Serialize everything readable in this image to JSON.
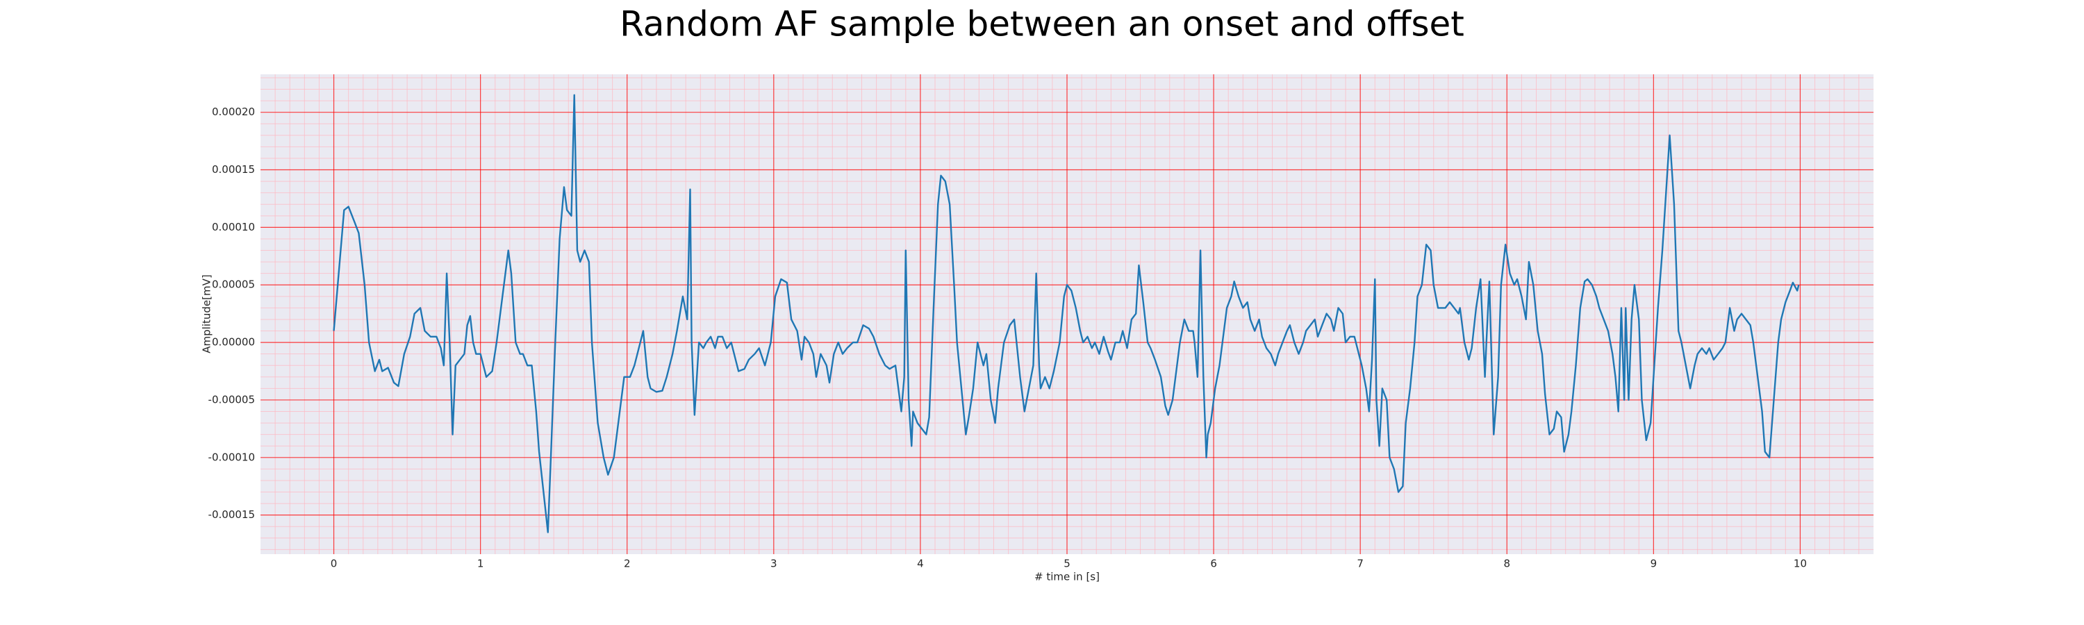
{
  "chart_data": {
    "type": "line",
    "title": "Random AF sample between an onset and offset",
    "xlabel": "# time in [s]",
    "ylabel": "Amplitude[mV]",
    "color": "#1f77b4",
    "grid": true,
    "xlim": [
      -0.5,
      10.5
    ],
    "ylim": [
      -0.000184,
      0.000233
    ],
    "xticks": [
      0,
      1,
      2,
      3,
      4,
      5,
      6,
      7,
      8,
      9,
      10
    ],
    "yticks": [
      {
        "value": -0.00015,
        "label": "-0.00015"
      },
      {
        "value": -0.0001,
        "label": "-0.00010"
      },
      {
        "value": -5e-05,
        "label": "-0.00005"
      },
      {
        "value": 0,
        "label": "0.00000"
      },
      {
        "value": 5e-05,
        "label": "0.00005"
      },
      {
        "value": 0.0001,
        "label": "0.00010"
      },
      {
        "value": 0.00015,
        "label": "0.00015"
      },
      {
        "value": 0.0002,
        "label": "0.00020"
      }
    ],
    "x": [
      0,
      0.04,
      0.07,
      0.1,
      0.14,
      0.17,
      0.21,
      0.24,
      0.28,
      0.31,
      0.33,
      0.37,
      0.41,
      0.44,
      0.48,
      0.52,
      0.55,
      0.59,
      0.62,
      0.66,
      0.7,
      0.73,
      0.75,
      0.77,
      0.79,
      0.81,
      0.83,
      0.86,
      0.89,
      0.91,
      0.93,
      0.95,
      0.97,
      1.0,
      1.04,
      1.08,
      1.11,
      1.15,
      1.19,
      1.21,
      1.24,
      1.27,
      1.29,
      1.32,
      1.35,
      1.38,
      1.4,
      1.43,
      1.46,
      1.48,
      1.51,
      1.54,
      1.57,
      1.59,
      1.62,
      1.64,
      1.66,
      1.68,
      1.71,
      1.74,
      1.76,
      1.8,
      1.84,
      1.87,
      1.91,
      1.95,
      1.98,
      2.02,
      2.05,
      2.09,
      2.11,
      2.14,
      2.16,
      2.2,
      2.24,
      2.27,
      2.31,
      2.34,
      2.38,
      2.41,
      2.43,
      2.44,
      2.46,
      2.49,
      2.52,
      2.54,
      2.57,
      2.6,
      2.62,
      2.65,
      2.68,
      2.71,
      2.73,
      2.76,
      2.8,
      2.83,
      2.87,
      2.9,
      2.94,
      2.98,
      3.01,
      3.05,
      3.09,
      3.12,
      3.16,
      3.19,
      3.21,
      3.24,
      3.27,
      3.29,
      3.32,
      3.36,
      3.38,
      3.41,
      3.44,
      3.47,
      3.5,
      3.54,
      3.57,
      3.61,
      3.65,
      3.68,
      3.72,
      3.76,
      3.79,
      3.83,
      3.86,
      3.87,
      3.89,
      3.9,
      3.92,
      3.94,
      3.95,
      3.98,
      4.01,
      4.04,
      4.06,
      4.09,
      4.12,
      4.14,
      4.17,
      4.2,
      4.23,
      4.25,
      4.28,
      4.31,
      4.33,
      4.36,
      4.39,
      4.43,
      4.45,
      4.48,
      4.51,
      4.53,
      4.57,
      4.61,
      4.64,
      4.68,
      4.71,
      4.74,
      4.77,
      4.79,
      4.81,
      4.82,
      4.85,
      4.88,
      4.91,
      4.95,
      4.98,
      5.0,
      5.03,
      5.06,
      5.09,
      5.11,
      5.14,
      5.17,
      5.19,
      5.22,
      5.25,
      5.28,
      5.3,
      5.33,
      5.36,
      5.38,
      5.41,
      5.44,
      5.47,
      5.49,
      5.52,
      5.55,
      5.57,
      5.6,
      5.64,
      5.67,
      5.69,
      5.72,
      5.75,
      5.77,
      5.8,
      5.83,
      5.86,
      5.87,
      5.89,
      5.91,
      5.93,
      5.95,
      5.96,
      5.98,
      6.01,
      6.04,
      6.06,
      6.09,
      6.12,
      6.14,
      6.17,
      6.2,
      6.23,
      6.25,
      6.28,
      6.31,
      6.33,
      6.36,
      6.39,
      6.42,
      6.44,
      6.47,
      6.5,
      6.52,
      6.55,
      6.58,
      6.61,
      6.63,
      6.66,
      6.69,
      6.71,
      6.74,
      6.77,
      6.8,
      6.82,
      6.85,
      6.88,
      6.9,
      6.93,
      6.96,
      6.99,
      7.01,
      7.04,
      7.06,
      7.08,
      7.1,
      7.11,
      7.13,
      7.15,
      7.18,
      7.2,
      7.23,
      7.26,
      7.29,
      7.31,
      7.34,
      7.37,
      7.39,
      7.42,
      7.45,
      7.48,
      7.5,
      7.53,
      7.56,
      7.58,
      7.61,
      7.64,
      7.67,
      7.68,
      7.71,
      7.74,
      7.76,
      7.79,
      7.82,
      7.85,
      7.86,
      7.88,
      7.91,
      7.94,
      7.96,
      7.99,
      8.02,
      8.05,
      8.07,
      8.1,
      8.13,
      8.15,
      8.18,
      8.21,
      8.24,
      8.26,
      8.29,
      8.32,
      8.34,
      8.37,
      8.39,
      8.42,
      8.44,
      8.47,
      8.5,
      8.53,
      8.55,
      8.58,
      8.61,
      8.63,
      8.66,
      8.69,
      8.72,
      8.74,
      8.76,
      8.78,
      8.8,
      8.81,
      8.83,
      8.85,
      8.87,
      8.9,
      8.92,
      8.95,
      8.98,
      9.0,
      9.03,
      9.06,
      9.09,
      9.11,
      9.14,
      9.17,
      9.19,
      9.22,
      9.25,
      9.28,
      9.3,
      9.33,
      9.36,
      9.38,
      9.41,
      9.44,
      9.47,
      9.49,
      9.52,
      9.55,
      9.57,
      9.6,
      9.63,
      9.66,
      9.68,
      9.71,
      9.74,
      9.76,
      9.79,
      9.82,
      9.85,
      9.87,
      9.9,
      9.93,
      9.95,
      9.98,
      9.99
    ],
    "values": [
      1e-05,
      7e-05,
      0.000115,
      0.000118,
      0.000105,
      9.5e-05,
      5e-05,
      0,
      -2.5e-05,
      -1.5e-05,
      -2.5e-05,
      -2.2e-05,
      -3.5e-05,
      -3.8e-05,
      -1e-05,
      5e-06,
      2.5e-05,
      3e-05,
      1e-05,
      5e-06,
      5e-06,
      -5e-06,
      -2e-05,
      6e-05,
      0,
      -8e-05,
      -2e-05,
      -1.5e-05,
      -1e-05,
      1.5e-05,
      2.3e-05,
      0,
      -1e-05,
      -1e-05,
      -3e-05,
      -2.5e-05,
      0,
      4e-05,
      8e-05,
      6e-05,
      0,
      -1e-05,
      -1e-05,
      -2e-05,
      -2e-05,
      -6e-05,
      -9.5e-05,
      -0.00013,
      -0.000165,
      -0.0001,
      0,
      9e-05,
      0.000135,
      0.000115,
      0.00011,
      0.000215,
      8e-05,
      7e-05,
      8e-05,
      7e-05,
      0,
      -7e-05,
      -0.0001,
      -0.000115,
      -0.0001,
      -6e-05,
      -3e-05,
      -3e-05,
      -2e-05,
      0,
      1e-05,
      -3e-05,
      -4e-05,
      -4.3e-05,
      -4.2e-05,
      -3e-05,
      -1e-05,
      1e-05,
      4e-05,
      2e-05,
      0.000133,
      0,
      -6.3e-05,
      0,
      -5e-06,
      0,
      5e-06,
      -5e-06,
      5e-06,
      5e-06,
      -5e-06,
      0,
      -1e-05,
      -2.5e-05,
      -2.3e-05,
      -1.5e-05,
      -1e-05,
      -5e-06,
      -2e-05,
      0,
      4e-05,
      5.5e-05,
      5.2e-05,
      2e-05,
      1e-05,
      -1.5e-05,
      5e-06,
      0,
      -1e-05,
      -3e-05,
      -1e-05,
      -2e-05,
      -3.5e-05,
      -1e-05,
      0,
      -1e-05,
      -5e-06,
      0,
      0,
      1.5e-05,
      1.2e-05,
      5e-06,
      -1e-05,
      -2e-05,
      -2.3e-05,
      -2e-05,
      -5e-05,
      -6e-05,
      -3e-05,
      8e-05,
      -5e-05,
      -9e-05,
      -6e-05,
      -7e-05,
      -7.5e-05,
      -8e-05,
      -6.5e-05,
      3e-05,
      0.00012,
      0.000145,
      0.00014,
      0.00012,
      5e-05,
      0,
      -4e-05,
      -8e-05,
      -6.5e-05,
      -4e-05,
      0,
      -2e-05,
      -1e-05,
      -5e-05,
      -7e-05,
      -4e-05,
      0,
      1.5e-05,
      2e-05,
      -3e-05,
      -6e-05,
      -4e-05,
      -2e-05,
      6e-05,
      -2e-05,
      -4e-05,
      -3e-05,
      -4e-05,
      -2.5e-05,
      0,
      4e-05,
      5e-05,
      4.5e-05,
      3e-05,
      1e-05,
      0,
      5e-06,
      -5e-06,
      0,
      -1e-05,
      5e-06,
      -8e-06,
      -1.5e-05,
      0,
      0,
      1e-05,
      -5e-06,
      2e-05,
      2.5e-05,
      6.7e-05,
      3.5e-05,
      0,
      -5e-06,
      -1.5e-05,
      -3e-05,
      -5.5e-05,
      -6.3e-05,
      -5e-05,
      -2e-05,
      0,
      2e-05,
      1e-05,
      1e-05,
      0,
      -3e-05,
      8e-05,
      -3e-05,
      -0.0001,
      -8e-05,
      -7e-05,
      -4e-05,
      -2e-05,
      0,
      3e-05,
      4e-05,
      5.3e-05,
      4e-05,
      3e-05,
      3.5e-05,
      2e-05,
      1e-05,
      2e-05,
      5e-06,
      -5e-06,
      -1e-05,
      -2e-05,
      -1e-05,
      0,
      1e-05,
      1.5e-05,
      0,
      -1e-05,
      0,
      1e-05,
      1.5e-05,
      2e-05,
      5e-06,
      1.5e-05,
      2.5e-05,
      2e-05,
      1e-05,
      3e-05,
      2.5e-05,
      0,
      5e-06,
      5e-06,
      -1e-05,
      -2e-05,
      -4e-05,
      -6e-05,
      -1.5e-05,
      5.5e-05,
      -5e-05,
      -9e-05,
      -4e-05,
      -5e-05,
      -0.0001,
      -0.00011,
      -0.00013,
      -0.000125,
      -7e-05,
      -4e-05,
      0,
      4e-05,
      5e-05,
      8.5e-05,
      8e-05,
      5e-05,
      3e-05,
      3e-05,
      3e-05,
      3.5e-05,
      3e-05,
      2.5e-05,
      3e-05,
      0,
      -1.5e-05,
      -5e-06,
      3e-05,
      5.5e-05,
      -3e-05,
      0,
      5.3e-05,
      -8e-05,
      -3e-05,
      5e-05,
      8.5e-05,
      6e-05,
      5e-05,
      5.5e-05,
      4e-05,
      2e-05,
      7e-05,
      5e-05,
      1e-05,
      -1e-05,
      -4.5e-05,
      -8e-05,
      -7.5e-05,
      -6e-05,
      -6.5e-05,
      -9.5e-05,
      -8e-05,
      -6e-05,
      -2e-05,
      3e-05,
      5.3e-05,
      5.5e-05,
      5e-05,
      4e-05,
      3e-05,
      2e-05,
      1e-05,
      -1e-05,
      -3e-05,
      -6e-05,
      3e-05,
      -5e-05,
      3e-05,
      -5e-05,
      2e-05,
      5e-05,
      2e-05,
      -5e-05,
      -8.5e-05,
      -7e-05,
      -3e-05,
      3e-05,
      8e-05,
      0.00014,
      0.00018,
      0.00012,
      1e-05,
      0,
      -2e-05,
      -4e-05,
      -2e-05,
      -1e-05,
      -5e-06,
      -1e-05,
      -5e-06,
      -1.5e-05,
      -1e-05,
      -5e-06,
      0,
      3e-05,
      1e-05,
      2e-05,
      2.5e-05,
      2e-05,
      1.5e-05,
      0,
      -3e-05,
      -6e-05,
      -9.5e-05,
      -0.0001,
      -5e-05,
      0,
      2e-05,
      3.5e-05,
      4.5e-05,
      5.2e-05,
      4.5e-05,
      5e-05
    ]
  }
}
